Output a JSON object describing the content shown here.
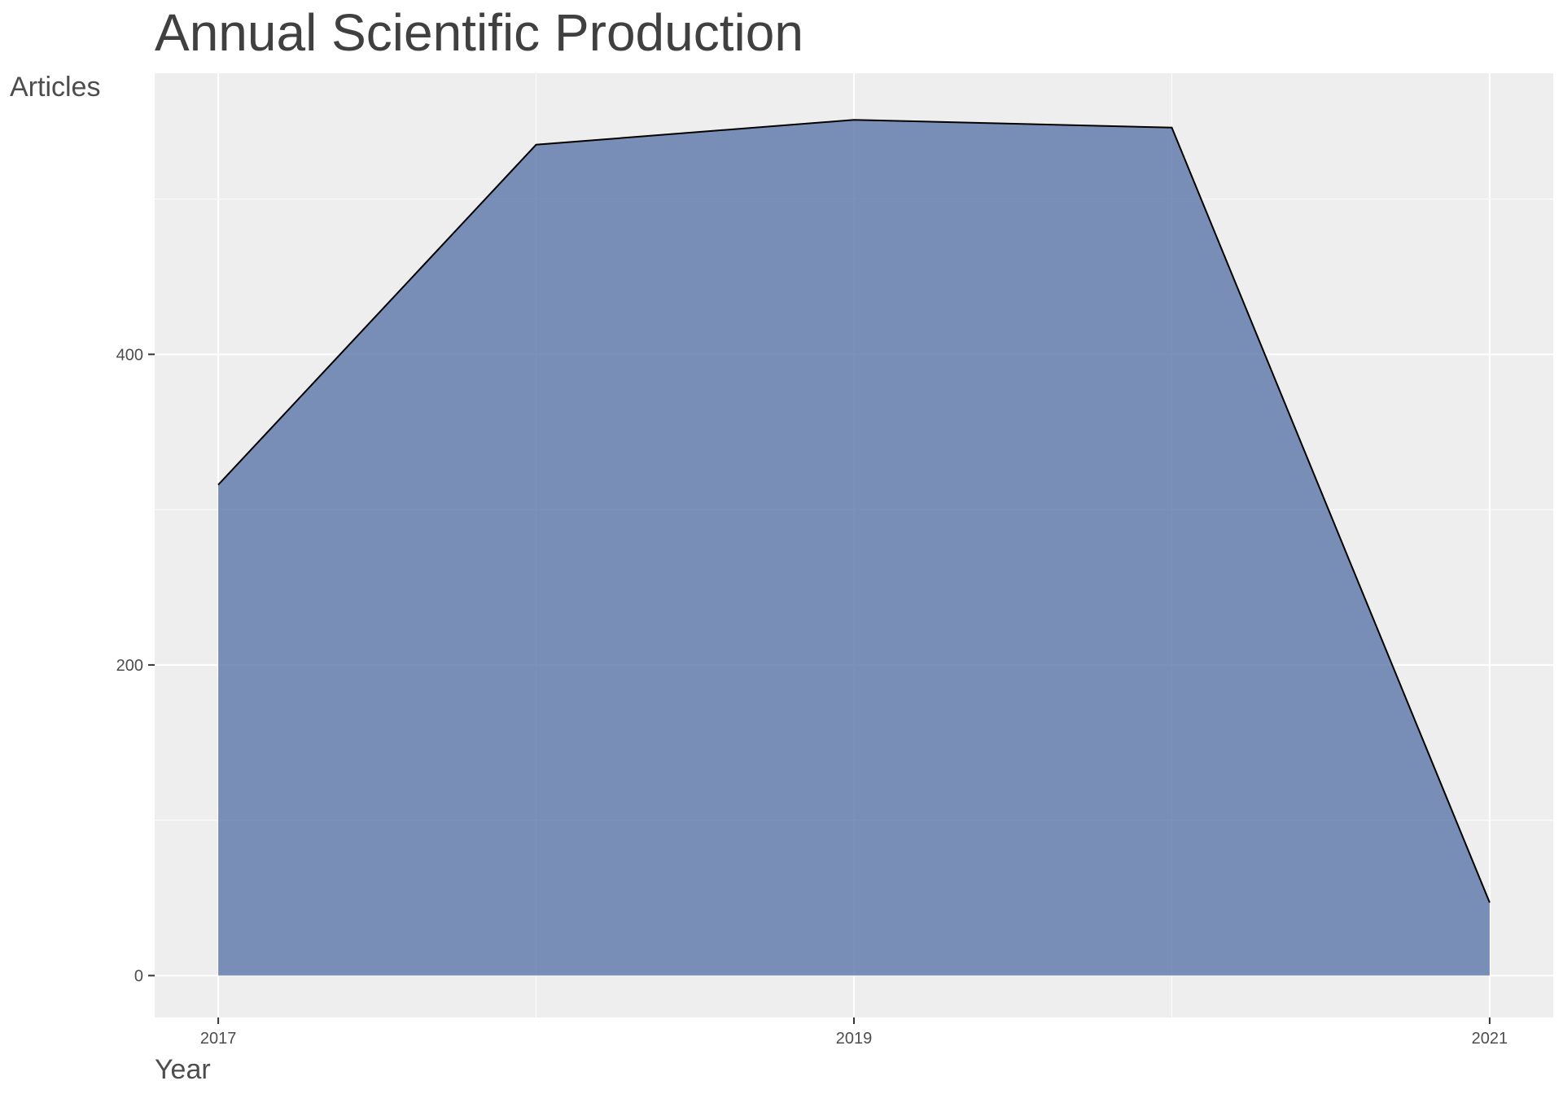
{
  "chart_data": {
    "type": "area",
    "title": "Annual Scientific Production",
    "xlabel": "Year",
    "ylabel": "Articles",
    "x": [
      2017,
      2018,
      2019,
      2020,
      2021
    ],
    "series": [
      {
        "values": [
          316,
          535,
          551,
          546,
          47
        ]
      }
    ],
    "xticks": [
      2017,
      2019,
      2021
    ],
    "yticks": [
      0,
      200,
      400
    ],
    "xlim": [
      2016.8,
      2021.2
    ],
    "ylim": [
      -27,
      581
    ],
    "grid": true,
    "legend": "none",
    "colors": {
      "fill": "#5b76a8",
      "line": "#000000",
      "panel": "#eeeeee",
      "grid": "#ffffff",
      "text": "#404040"
    }
  }
}
